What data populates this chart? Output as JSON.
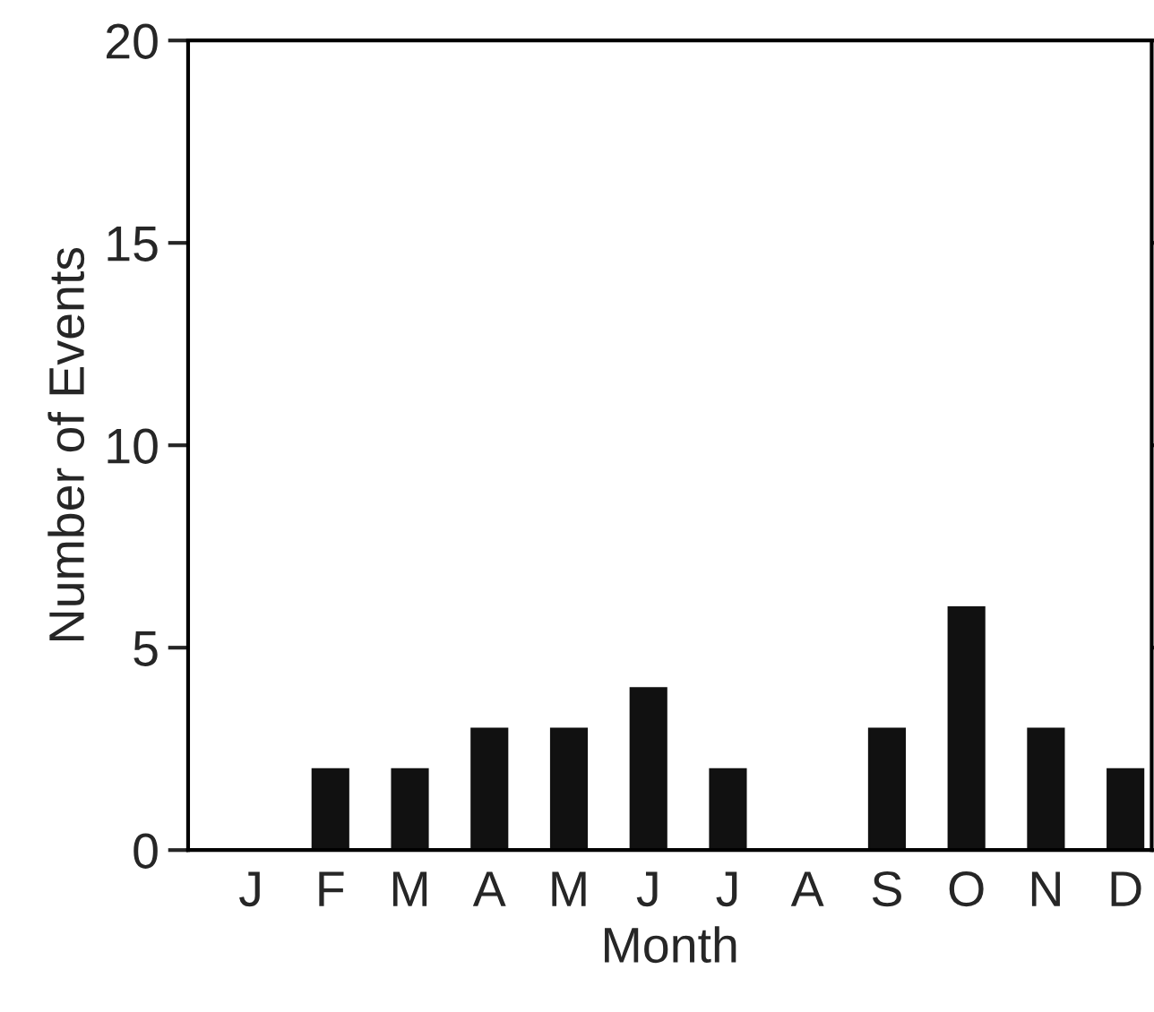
{
  "chart_data": {
    "type": "bar",
    "xlabel": "Month",
    "ylabel": "Number of Events",
    "categories": [
      "J",
      "F",
      "M",
      "A",
      "M",
      "J",
      "J",
      "A",
      "S",
      "O",
      "N",
      "D"
    ],
    "values": [
      0,
      2,
      2,
      3,
      3,
      4,
      2,
      0,
      3,
      6,
      3,
      2
    ],
    "color": "#111111",
    "ylim": [
      0,
      20
    ],
    "yticks": [
      0,
      5,
      10,
      15,
      20
    ],
    "grid": false,
    "legend": false
  }
}
